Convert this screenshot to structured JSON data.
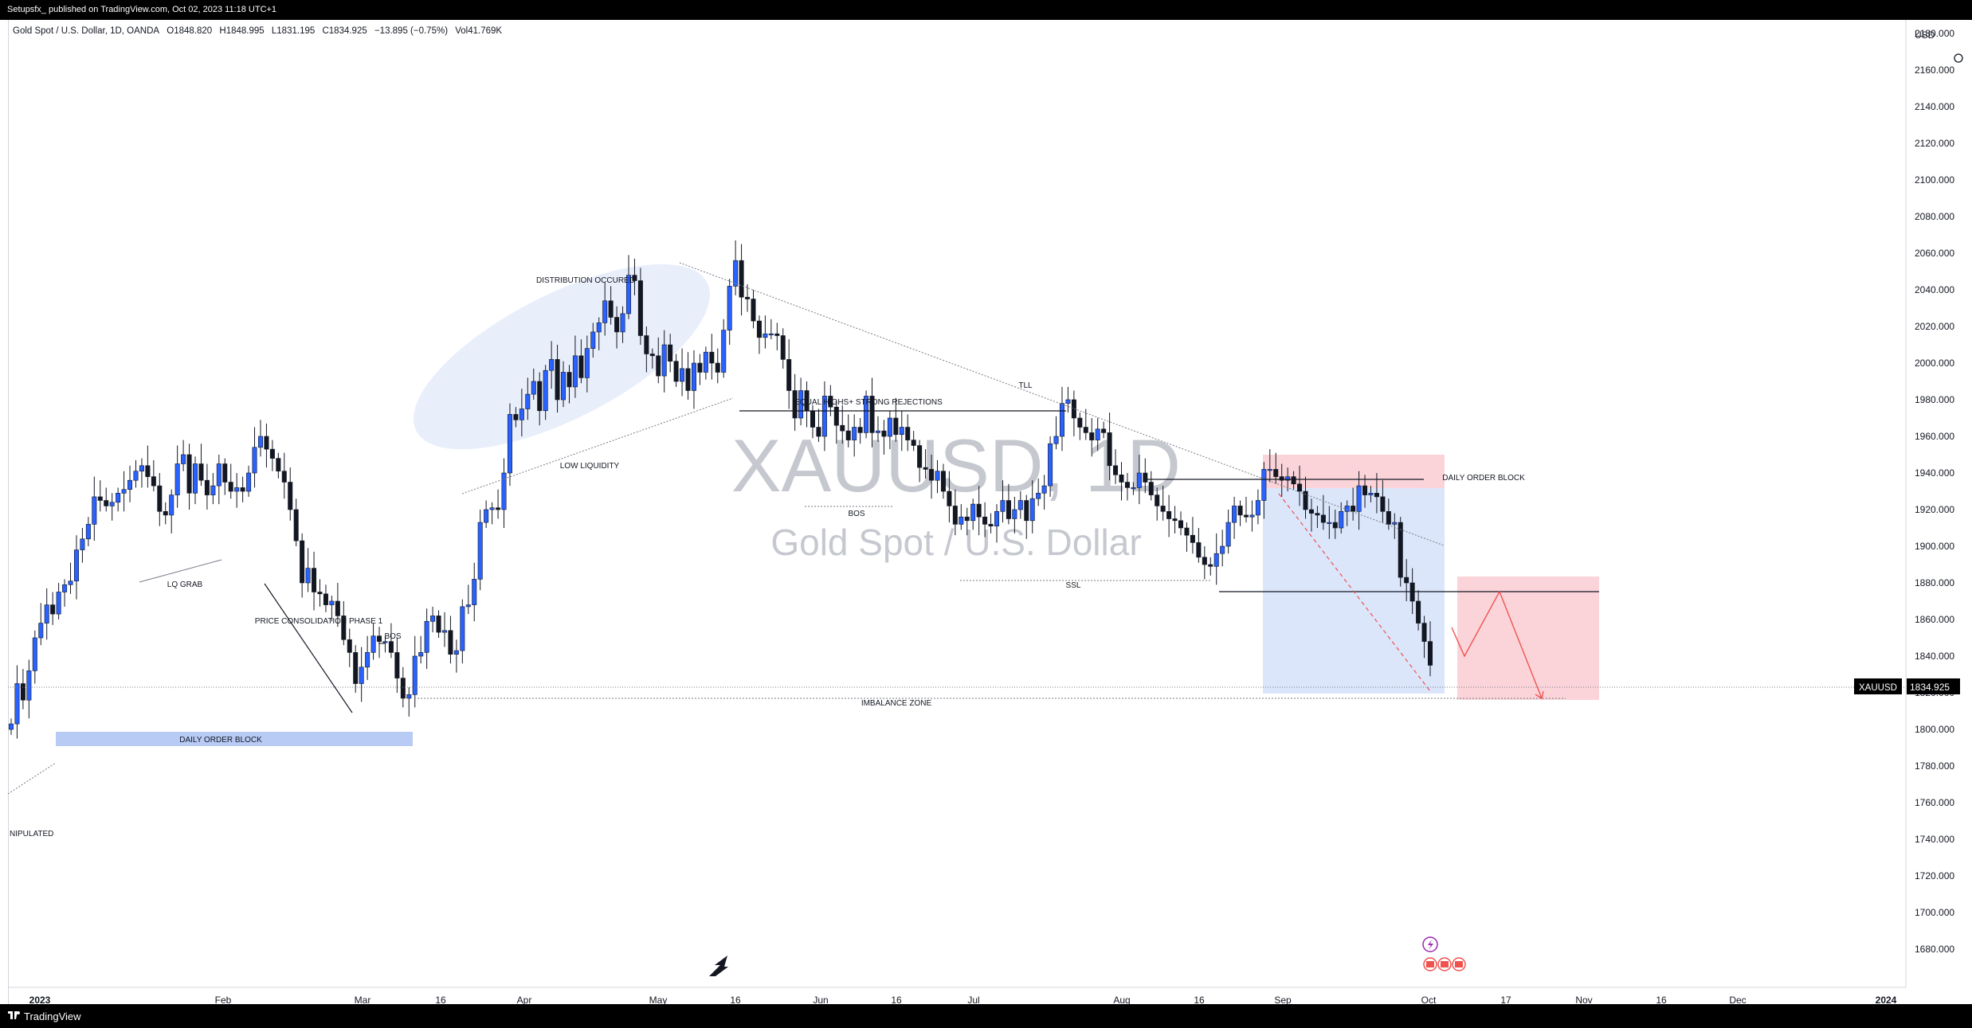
{
  "header": {
    "published": "Setupsfx_ published on TradingView.com, Oct 02, 2023 11:18 UTC+1"
  },
  "symbol_line": {
    "name": "Gold Spot / U.S. Dollar, 1D, OANDA",
    "open": "O1848.820",
    "high": "H1848.995",
    "low": "L1831.195",
    "close": "C1834.925",
    "change": "−13.895 (−0.75%)",
    "volume": "Vol41.769K"
  },
  "watermark": {
    "ticker": "XAUUSD, 1D",
    "description": "Gold Spot / U.S. Dollar"
  },
  "price_axis": {
    "currency": "USD",
    "last_label": "XAUUSD",
    "last_value": "1834.925"
  },
  "footer": {
    "brand": "TradingView"
  },
  "colors": {
    "bull": "#2962ff",
    "bear": "#131722",
    "order_block": "#b8cbf5",
    "short_zone": "#fbd4da",
    "long_zone": "#dbe6fb",
    "arrow_red": "#ef5350"
  },
  "annotations": {
    "distribution": "DISTRIBUTION OCCURED",
    "low_liquidity": "LOW LIQUIDITY",
    "lq_grab": "LQ GRAB",
    "consolidation": "PRICE CONSOLIDATION PHASE 1",
    "bos1": "BOS",
    "bos2": "BOS",
    "equal_highs": "EQUAL HIGHS+ STRONG REJECTIONS",
    "tll": "TLL",
    "ssl": "SSL",
    "daily_ob_left": "DAILY ORDER BLOCK",
    "daily_ob_right": "DAILY ORDER BLOCK",
    "imbalance": "IMBALANCE ZONE",
    "manipulated": "NIPULATED"
  },
  "chart_data": {
    "type": "candlestick",
    "title": "Gold Spot / U.S. Dollar, 1D, OANDA",
    "ylim": [
      1680,
      2200
    ],
    "y_ticks": [
      1680,
      1700,
      1720,
      1740,
      1760,
      1780,
      1800,
      1820,
      1840,
      1860,
      1880,
      1900,
      1920,
      1940,
      1960,
      1980,
      2000,
      2020,
      2040,
      2060,
      2080,
      2100,
      2120,
      2140,
      2160,
      2180
    ],
    "x_ticks": [
      "2023",
      "Feb",
      "Mar",
      "16",
      "Apr",
      "May",
      "16",
      "Jun",
      "16",
      "Jul",
      "Aug",
      "16",
      "Sep",
      "Oct",
      "17",
      "Nov",
      "16",
      "Dec",
      "2024"
    ],
    "last_price": 1834.925,
    "closes": [
      1803,
      1825,
      1816,
      1832,
      1850,
      1858,
      1868,
      1863,
      1875,
      1879,
      1881,
      1898,
      1904,
      1912,
      1927,
      1925,
      1922,
      1924,
      1929,
      1931,
      1936,
      1941,
      1944,
      1938,
      1933,
      1919,
      1917,
      1928,
      1945,
      1950,
      1929,
      1945,
      1936,
      1928,
      1933,
      1945,
      1935,
      1930,
      1932,
      1930,
      1940,
      1954,
      1960,
      1953,
      1948,
      1941,
      1935,
      1920,
      1903,
      1880,
      1888,
      1875,
      1874,
      1868,
      1870,
      1862,
      1849,
      1842,
      1825,
      1834,
      1842,
      1851,
      1848,
      1848,
      1842,
      1828,
      1817,
      1819,
      1840,
      1842,
      1859,
      1862,
      1853,
      1854,
      1841,
      1843,
      1867,
      1868,
      1882,
      1913,
      1920,
      1921,
      1920,
      1940,
      1972,
      1969,
      1975,
      1983,
      1990,
      1974,
      1996,
      2002,
      1980,
      1995,
      1987,
      2004,
      1992,
      2008,
      2017,
      2022,
      2034,
      2025,
      2017,
      2027,
      2048,
      2045,
      2015,
      2005,
      2004,
      1993,
      2010,
      2001,
      1990,
      1997,
      1985,
      2000,
      1995,
      2006,
      2000,
      1995,
      2018,
      2042,
      2056,
      2036,
      2035,
      2023,
      2014,
      2016,
      2016,
      2015,
      2002,
      1985,
      1970,
      1985,
      1974,
      1965,
      1960,
      1982,
      1976,
      1966,
      1963,
      1958,
      1965,
      1962,
      1982,
      1962,
      1963,
      1960,
      1970,
      1961,
      1965,
      1958,
      1955,
      1943,
      1942,
      1936,
      1941,
      1930,
      1922,
      1912,
      1916,
      1914,
      1923,
      1916,
      1912,
      1911,
      1919,
      1925,
      1915,
      1920,
      1925,
      1914,
      1926,
      1929,
      1933,
      1956,
      1960,
      1978,
      1980,
      1970,
      1965,
      1962,
      1958,
      1964,
      1962,
      1944,
      1939,
      1935,
      1932,
      1932,
      1940,
      1935,
      1928,
      1922,
      1919,
      1915,
      1914,
      1910,
      1906,
      1902,
      1894,
      1890,
      1889,
      1896,
      1900,
      1913,
      1922,
      1917,
      1916,
      1917,
      1925,
      1942,
      1942,
      1938,
      1936,
      1938,
      1934,
      1930,
      1920,
      1918,
      1917,
      1913,
      1913,
      1910,
      1919,
      1922,
      1919,
      1933,
      1928,
      1929,
      1927,
      1919,
      1912,
      1913,
      1883,
      1880,
      1870,
      1858,
      1848,
      1835
    ]
  }
}
